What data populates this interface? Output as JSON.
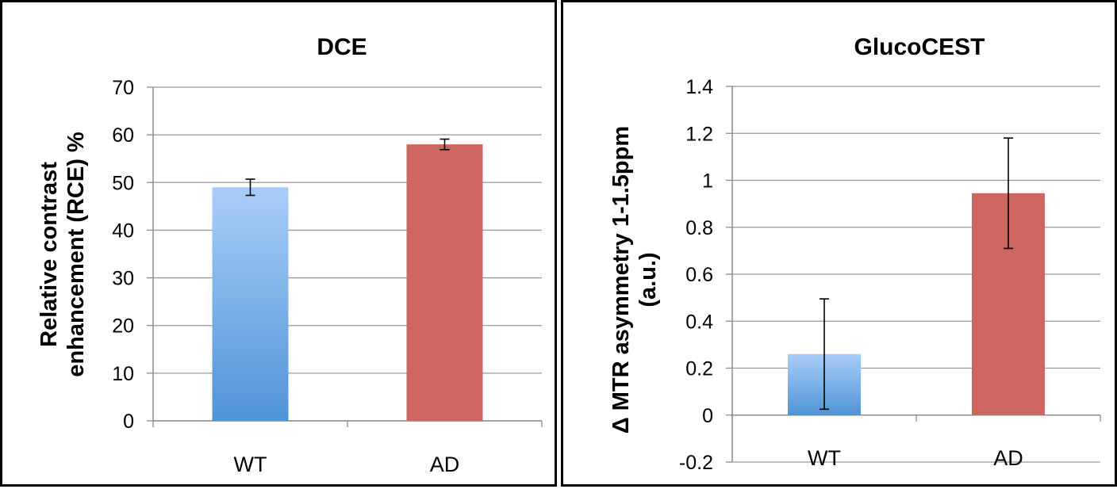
{
  "colors": {
    "wt_top": "#a9cdf8",
    "wt_bottom": "#4f94d8",
    "ad": "#cd665f",
    "grid": "#999999",
    "axis": "#8c8c8c",
    "border": "#000000"
  },
  "chart_data": [
    {
      "type": "bar",
      "title": "DCE",
      "ylabel": [
        "Relative contrast",
        "enhancement (RCE) %"
      ],
      "categories": [
        "WT",
        "AD"
      ],
      "values": [
        49,
        58
      ],
      "errors": [
        1.7,
        1.1
      ],
      "ylim": [
        0,
        70
      ],
      "yticks": [
        0,
        10,
        20,
        30,
        40,
        50,
        60,
        70
      ],
      "ytick_labels": [
        "0",
        "10",
        "20",
        "30",
        "40",
        "50",
        "60",
        "70"
      ],
      "grid": true,
      "legend": "none"
    },
    {
      "type": "bar",
      "title": "GlucoCEST",
      "ylabel": [
        "Δ MTR asymmetry 1-1.5ppm",
        "(a.u.)"
      ],
      "categories": [
        "WT",
        "AD"
      ],
      "values": [
        0.26,
        0.945
      ],
      "errors": [
        0.235,
        0.235
      ],
      "ylim": [
        -0.2,
        1.4
      ],
      "yticks": [
        -0.2,
        0,
        0.2,
        0.4,
        0.6,
        0.8,
        1,
        1.2,
        1.4
      ],
      "ytick_labels": [
        "-0.2",
        "0",
        "0.2",
        "0.4",
        "0.6",
        "0.8",
        "1",
        "1.2",
        "1.4"
      ],
      "grid": true,
      "legend": "none"
    }
  ]
}
